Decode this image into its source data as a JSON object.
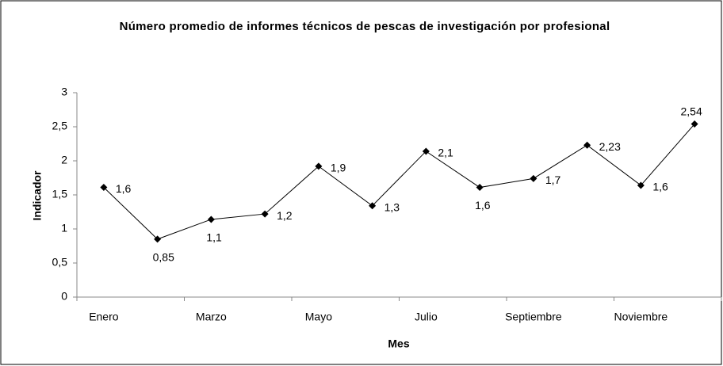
{
  "chart_data": {
    "type": "line",
    "title": "Número promedio de informes técnicos de pescas de investigación por profesional",
    "x_label": "Mes",
    "y_label": "Indicador",
    "categories": [
      "Enero",
      null,
      "Marzo",
      null,
      "Mayo",
      null,
      "Julio",
      null,
      "Septiembre",
      null,
      "Noviembre",
      null
    ],
    "series": [
      {
        "name": "Indicador",
        "color": "#000000",
        "values": [
          1.61,
          0.85,
          1.14,
          1.22,
          1.92,
          1.34,
          2.14,
          1.61,
          1.74,
          2.23,
          1.64,
          2.54
        ],
        "value_labels": [
          "1,6",
          "0,85",
          "1,1",
          "1,2",
          "1,9",
          "1,3",
          "2,1",
          "1,6",
          "1,7",
          "2,23",
          "1,6",
          "2,54"
        ]
      }
    ],
    "ylim": [
      0,
      3
    ],
    "yticks": [
      0,
      {
        "value": 0.5,
        "label": "0,5"
      },
      1,
      {
        "value": 1.5,
        "label": "1,5"
      },
      2,
      {
        "value": 2.5,
        "label": "2,5"
      },
      3
    ],
    "grid": false
  }
}
